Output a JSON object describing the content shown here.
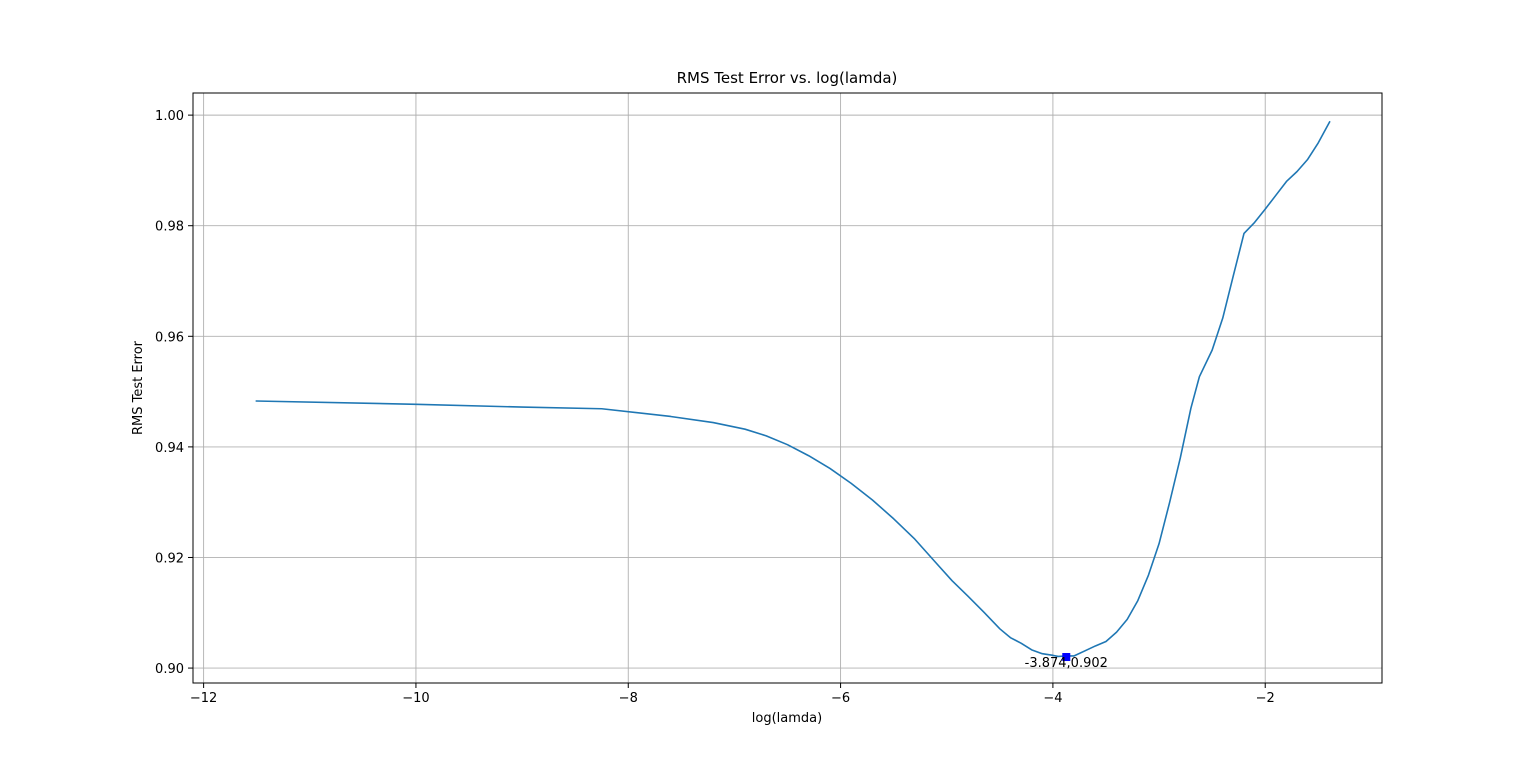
{
  "chart_data": {
    "type": "line",
    "title": "RMS Test Error vs. log(lamda)",
    "xlabel": "log(lamda)",
    "ylabel": "RMS Test Error",
    "xlim": [
      -12.1,
      -0.9
    ],
    "ylim": [
      0.8973,
      1.004
    ],
    "grid": true,
    "xticks": [
      -12,
      -10,
      -8,
      -6,
      -4,
      -2
    ],
    "xtick_labels": [
      "−12",
      "−10",
      "−8",
      "−6",
      "−4",
      "−2"
    ],
    "yticks": [
      0.9,
      0.92,
      0.94,
      0.96,
      0.98,
      1.0
    ],
    "ytick_labels": [
      "0.90",
      "0.92",
      "0.94",
      "0.96",
      "0.98",
      "1.00"
    ],
    "line_color": "#1f77b4",
    "marker_color": "#0000ff",
    "series": [
      {
        "x": [
          -11.51,
          -10.0,
          -9.0,
          -8.25,
          -7.6,
          -7.2,
          -6.9,
          -6.7,
          -6.5,
          -6.3,
          -6.1,
          -5.9,
          -5.7,
          -5.5,
          -5.3,
          -5.1,
          -4.95,
          -4.8,
          -4.65,
          -4.5,
          -4.4,
          -4.3,
          -4.2,
          -4.1,
          -4.0,
          -3.95,
          -3.874,
          -3.8,
          -3.7,
          -3.6,
          -3.5,
          -3.4,
          -3.3,
          -3.2,
          -3.1,
          -3.0,
          -2.9,
          -2.8,
          -2.7,
          -2.62,
          -2.5,
          -2.4,
          -2.3,
          -2.2,
          -2.1,
          -2.0,
          -1.9,
          -1.8,
          -1.7,
          -1.6,
          -1.5,
          -1.39
        ],
        "y": [
          0.9483,
          0.9477,
          0.9472,
          0.9469,
          0.9455,
          0.9444,
          0.9432,
          0.942,
          0.9404,
          0.9384,
          0.9361,
          0.9334,
          0.9304,
          0.927,
          0.9233,
          0.919,
          0.9158,
          0.913,
          0.9101,
          0.9071,
          0.9055,
          0.9045,
          0.9033,
          0.9026,
          0.9023,
          0.9021,
          0.9022,
          0.9022,
          0.9031,
          0.904,
          0.9048,
          0.9065,
          0.9088,
          0.9122,
          0.9168,
          0.9225,
          0.93,
          0.938,
          0.947,
          0.9527,
          0.9575,
          0.9633,
          0.971,
          0.9786,
          0.9806,
          0.983,
          0.9855,
          0.988,
          0.9898,
          0.992,
          0.995,
          0.9989
        ]
      }
    ],
    "annotations": [
      {
        "x": -3.874,
        "y": 0.902,
        "text": "-3.874,0.902"
      }
    ]
  }
}
